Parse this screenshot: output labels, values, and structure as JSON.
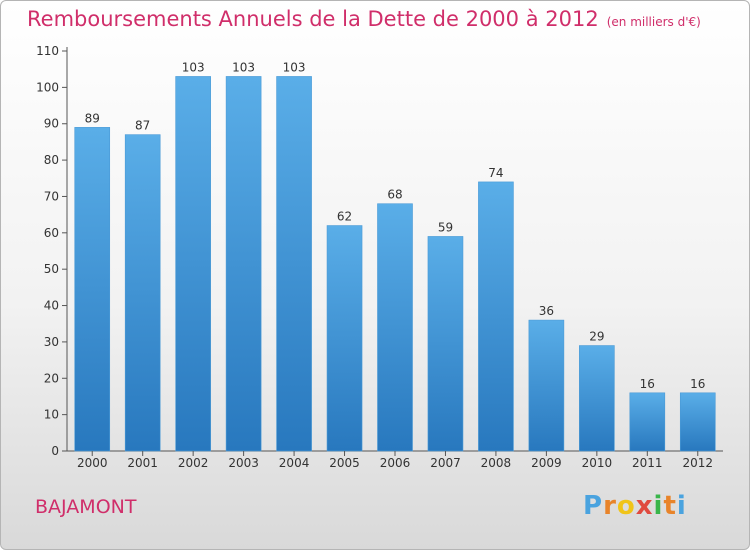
{
  "title": "Remboursements Annuels de la Dette de 2000 à 2012",
  "unit_note": "(en milliers d'€)",
  "commune": "BAJAMONT",
  "brand": {
    "letters": [
      "P",
      "r",
      "o",
      "x",
      "i",
      "t",
      "i"
    ],
    "colors": [
      "#4aa3df",
      "#e8842a",
      "#f0c419",
      "#e04a3f",
      "#39b54a",
      "#e8842a",
      "#4aa3df"
    ]
  },
  "colors": {
    "bar_top": "#5aaee8",
    "bar_bottom": "#2878be",
    "title": "#d02e6a",
    "axis": "#555555"
  },
  "chart_data": {
    "type": "bar",
    "categories": [
      "2000",
      "2001",
      "2002",
      "2003",
      "2004",
      "2005",
      "2006",
      "2007",
      "2008",
      "2009",
      "2010",
      "2011",
      "2012"
    ],
    "values": [
      89,
      87,
      103,
      103,
      103,
      62,
      68,
      59,
      74,
      36,
      29,
      16,
      16
    ],
    "ylim": [
      0,
      110
    ],
    "yticks": [
      0,
      10,
      20,
      30,
      40,
      50,
      60,
      70,
      80,
      90,
      100,
      110
    ],
    "grid": false,
    "title": "Remboursements Annuels de la Dette de 2000 à 2012",
    "xlabel": "",
    "ylabel": ""
  }
}
